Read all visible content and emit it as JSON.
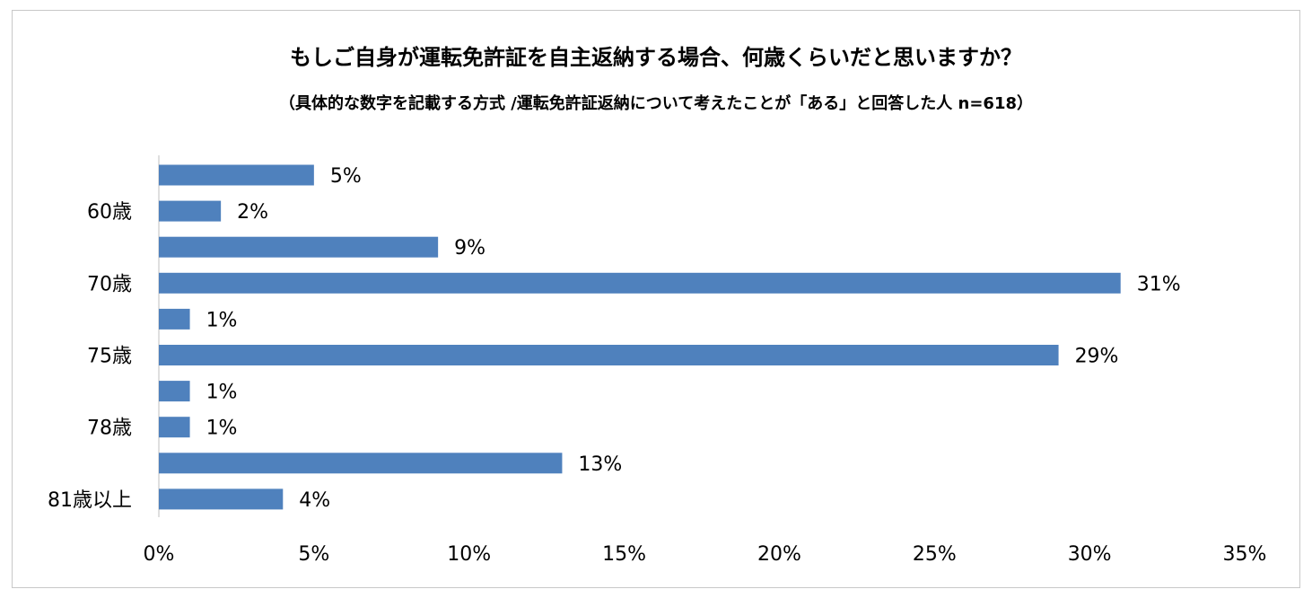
{
  "chart_data": {
    "type": "bar",
    "orientation": "horizontal",
    "title": "もしご自身が運転免許証を自主返納する場合、何歳くらいだと思いますか？",
    "subtitle": "（具体的な数字を記載する方式 /運転免許証返納について考えたことが「ある」と回答した人 n=618）",
    "categories": [
      "",
      "60歳",
      "",
      "70歳",
      "",
      "75歳",
      "",
      "78歳",
      "",
      "81歳以上"
    ],
    "values": [
      5,
      2,
      9,
      31,
      1,
      29,
      1,
      1,
      13,
      4
    ],
    "value_labels": [
      "5%",
      "2%",
      "9%",
      "31%",
      "1%",
      "29%",
      "1%",
      "1%",
      "13%",
      "4%"
    ],
    "xlim": [
      0,
      35
    ],
    "x_ticks": [
      0,
      5,
      10,
      15,
      20,
      25,
      30,
      35
    ],
    "x_tick_labels": [
      "0%",
      "5%",
      "10%",
      "15%",
      "20%",
      "25%",
      "30%",
      "35%"
    ],
    "bar_color": "#4F81BD",
    "grid": false,
    "legend": "none"
  }
}
